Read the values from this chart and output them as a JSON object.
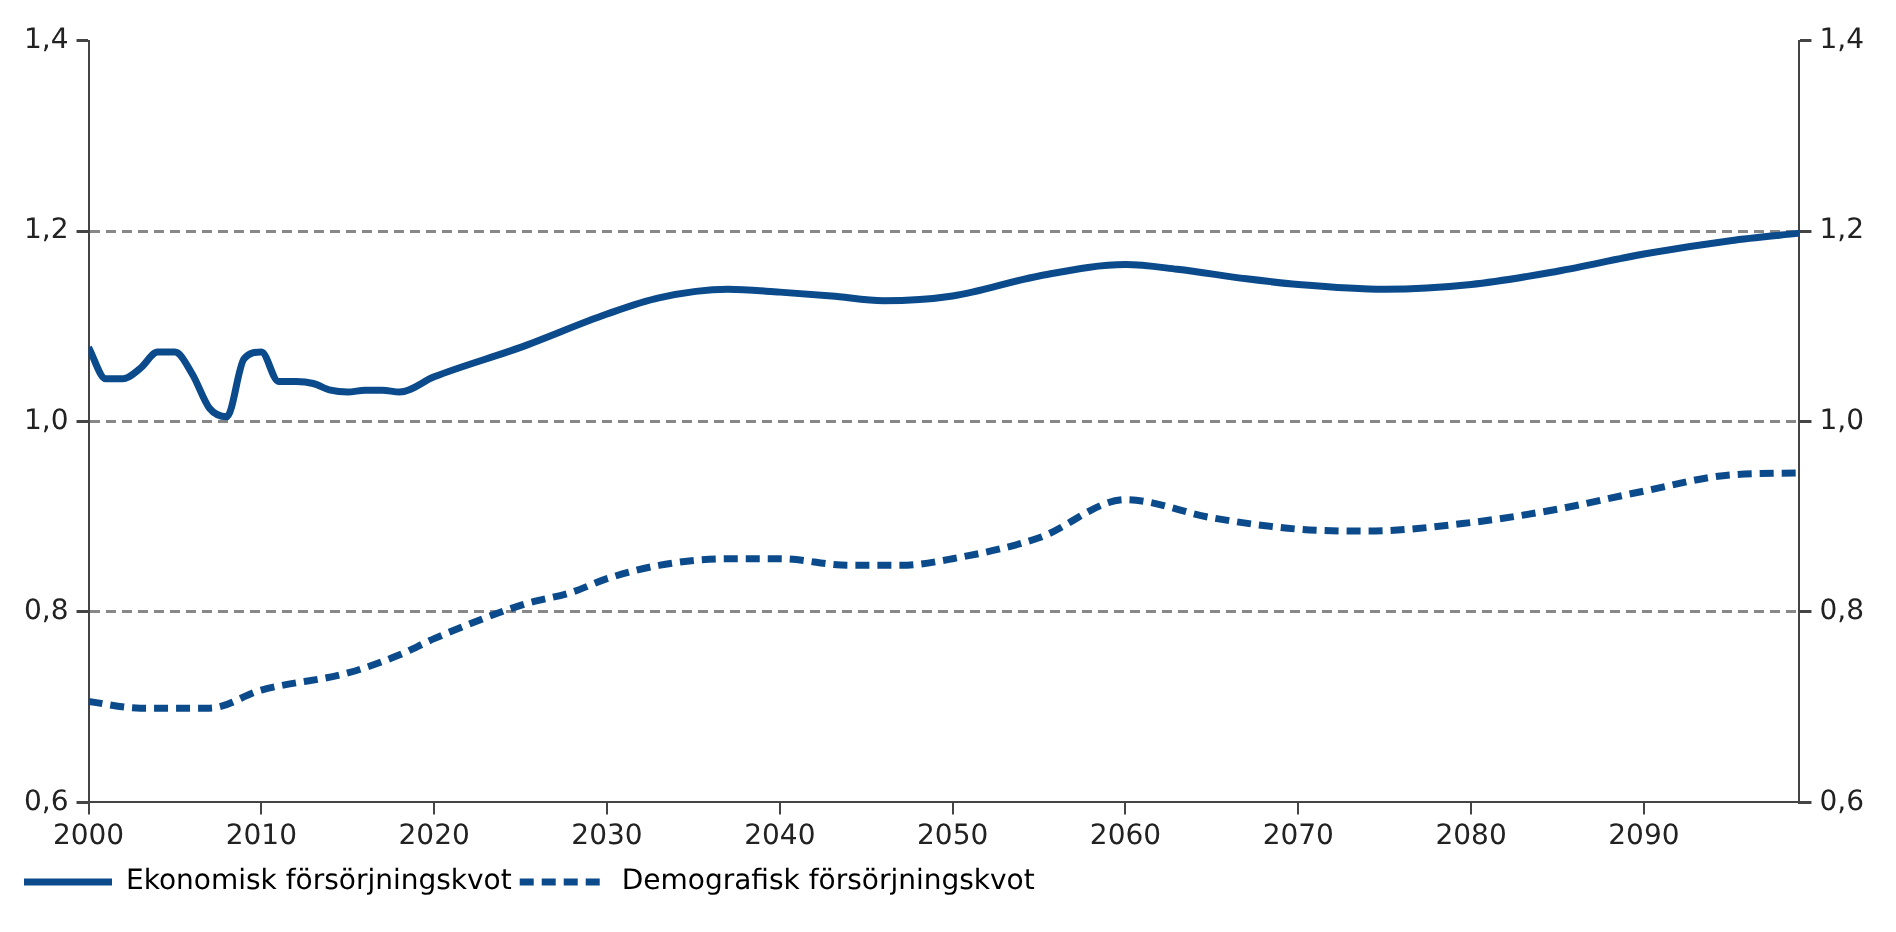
{
  "chart_data": {
    "type": "line",
    "xlim": [
      2000,
      2099
    ],
    "xticks": [
      2000,
      2010,
      2020,
      2030,
      2040,
      2050,
      2060,
      2070,
      2080,
      2090
    ],
    "ylim": [
      0.6,
      1.4
    ],
    "yticks": [
      {
        "value": 0.6,
        "label": "0,6"
      },
      {
        "value": 0.8,
        "label": "0,8"
      },
      {
        "value": 1.0,
        "label": "1,0"
      },
      {
        "value": 1.2,
        "label": "1,2"
      },
      {
        "value": 1.4,
        "label": "1,4"
      }
    ],
    "y2lim": [
      0.6,
      1.4
    ],
    "y2ticks": [
      {
        "value": 0.6,
        "label": "0,6"
      },
      {
        "value": 0.8,
        "label": "0,8"
      },
      {
        "value": 1.0,
        "label": "1,0"
      },
      {
        "value": 1.2,
        "label": "1,2"
      },
      {
        "value": 1.4,
        "label": "1,4"
      }
    ],
    "grid": "y",
    "legend": "bottom left",
    "marker": "none",
    "series": [
      {
        "name": "Ekonomisk försörjningskvot",
        "color": "#0b4a8b",
        "line_style": "solid",
        "x": [
          2000,
          2001,
          2002,
          2003,
          2004,
          2005,
          2006,
          2007,
          2008,
          2009,
          2010,
          2011,
          2012,
          2013,
          2014,
          2015,
          2016,
          2017,
          2018,
          2020,
          2025,
          2030,
          2033,
          2037,
          2040,
          2043,
          2046,
          2050,
          2055,
          2060,
          2063,
          2067,
          2070,
          2075,
          2080,
          2085,
          2090,
          2095,
          2099
        ],
        "values": [
          1.078,
          1.045,
          1.045,
          1.056,
          1.073,
          1.073,
          1.05,
          1.014,
          1.005,
          1.066,
          1.073,
          1.042,
          1.042,
          1.04,
          1.033,
          1.031,
          1.033,
          1.033,
          1.031,
          1.047,
          1.078,
          1.113,
          1.13,
          1.139,
          1.136,
          1.132,
          1.127,
          1.132,
          1.153,
          1.165,
          1.16,
          1.15,
          1.144,
          1.139,
          1.144,
          1.158,
          1.176,
          1.19,
          1.198
        ]
      },
      {
        "name": "Demografisk försörjningskvot",
        "color": "#0b4a8b",
        "line_style": "dashed",
        "x": [
          2000,
          2003,
          2007,
          2010,
          2015,
          2018,
          2020,
          2025,
          2028,
          2030,
          2033,
          2037,
          2040,
          2044,
          2047,
          2050,
          2055,
          2060,
          2065,
          2070,
          2074,
          2080,
          2085,
          2090,
          2095,
          2099
        ],
        "values": [
          0.706,
          0.699,
          0.699,
          0.718,
          0.736,
          0.755,
          0.772,
          0.807,
          0.821,
          0.835,
          0.849,
          0.856,
          0.856,
          0.849,
          0.849,
          0.856,
          0.878,
          0.918,
          0.899,
          0.887,
          0.885,
          0.894,
          0.908,
          0.927,
          0.944,
          0.946
        ]
      }
    ]
  }
}
